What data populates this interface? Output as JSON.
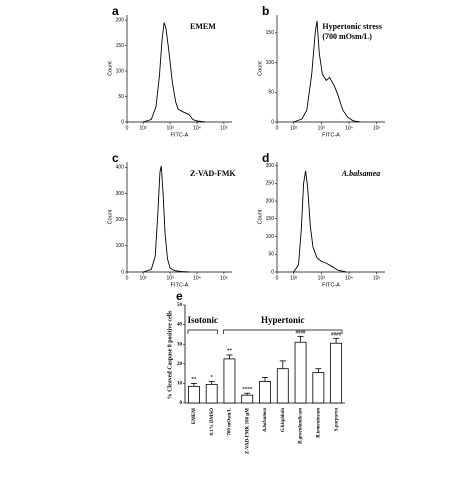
{
  "chart_data": [
    {
      "type": "line",
      "label": "a",
      "annotation": [
        "EMEM"
      ],
      "annotation_italic": false,
      "x_label": "FITC-A",
      "y_label": "Count",
      "xscale": "logicle",
      "xlim": [
        0,
        200000
      ],
      "xticks": [
        0,
        {
          "value": 100,
          "label": "10²"
        },
        {
          "value": 1000,
          "label": "10³"
        },
        {
          "value": 10000,
          "label": "10⁴"
        },
        {
          "value": 100000,
          "label": "10⁵"
        }
      ],
      "ylim": [
        0,
        210
      ],
      "yticks": [
        0,
        50,
        100,
        150,
        200
      ],
      "color": "#000000",
      "x": [
        100,
        200,
        300,
        400,
        500,
        600,
        700,
        900,
        1200,
        1600,
        2000,
        3000,
        5000,
        7000,
        10000,
        20000
      ],
      "values": [
        0,
        5,
        30,
        90,
        160,
        195,
        185,
        140,
        80,
        40,
        25,
        20,
        15,
        5,
        2,
        0
      ]
    },
    {
      "type": "line",
      "label": "b",
      "annotation": [
        "Hypertonic stress",
        "(700 mOsm/L)"
      ],
      "annotation_italic": false,
      "x_label": "FITC-A",
      "y_label": "Count",
      "xscale": "logicle",
      "xlim": [
        0,
        200000
      ],
      "xticks": [
        0,
        {
          "value": 100,
          "label": "10²"
        },
        {
          "value": 1000,
          "label": "10³"
        },
        {
          "value": 10000,
          "label": "10⁴"
        },
        {
          "value": 100000,
          "label": "10⁵"
        }
      ],
      "ylim": [
        0,
        180
      ],
      "yticks": [
        0,
        50,
        100,
        150
      ],
      "color": "#000000",
      "x": [
        100,
        200,
        300,
        450,
        600,
        700,
        850,
        1100,
        1500,
        2000,
        3000,
        4000,
        6000,
        9000,
        14000,
        25000
      ],
      "values": [
        0,
        5,
        20,
        80,
        150,
        170,
        115,
        80,
        70,
        75,
        60,
        45,
        20,
        8,
        2,
        0
      ]
    },
    {
      "type": "line",
      "label": "c",
      "annotation": [
        "Z-VAD-FMK"
      ],
      "annotation_italic": false,
      "x_label": "FITC-A",
      "y_label": "Count",
      "xscale": "logicle",
      "xlim": [
        0,
        200000
      ],
      "xticks": [
        0,
        {
          "value": 100,
          "label": "10²"
        },
        {
          "value": 1000,
          "label": "10³"
        },
        {
          "value": 10000,
          "label": "10⁴"
        },
        {
          "value": 100000,
          "label": "10⁵"
        }
      ],
      "ylim": [
        0,
        420
      ],
      "yticks": [
        0,
        100,
        200,
        300,
        400
      ],
      "color": "#000000",
      "x": [
        100,
        200,
        280,
        350,
        420,
        470,
        550,
        650,
        800,
        1000,
        1500,
        2500,
        5000
      ],
      "values": [
        0,
        10,
        60,
        220,
        380,
        405,
        300,
        150,
        50,
        15,
        5,
        2,
        0
      ]
    },
    {
      "type": "line",
      "label": "d",
      "annotation": [
        "A.balsamea"
      ],
      "annotation_italic": true,
      "x_label": "FITC-A",
      "y_label": "Count",
      "xscale": "logicle",
      "xlim": [
        0,
        200000
      ],
      "xticks": [
        0,
        {
          "value": 100,
          "label": "10²"
        },
        {
          "value": 1000,
          "label": "10³"
        },
        {
          "value": 10000,
          "label": "10⁴"
        },
        {
          "value": 100000,
          "label": "10⁵"
        }
      ],
      "ylim": [
        0,
        310
      ],
      "yticks": [
        0,
        50,
        100,
        150,
        200,
        250,
        300
      ],
      "color": "#000000",
      "x": [
        100,
        150,
        190,
        230,
        270,
        320,
        400,
        500,
        700,
        1000,
        1500,
        2500,
        4000,
        8000
      ],
      "values": [
        0,
        20,
        120,
        250,
        285,
        240,
        130,
        70,
        40,
        30,
        25,
        15,
        5,
        0
      ]
    },
    {
      "type": "bar",
      "label": "e",
      "y_label": "% Cleaved Caspase 8 positive cells",
      "groups": [
        "Isotonic",
        "Hypertonic"
      ],
      "categories": [
        "EMEM",
        "0.1% DMSO",
        "700 mOsm/L",
        "Z-VAD-FMK 100 µM",
        "A.balsamea",
        "G.hispidula",
        "R.groenlandicum",
        "R.tomentosum",
        "S.purpurea"
      ],
      "values": [
        8.5,
        9.5,
        22.5,
        4,
        11,
        17.5,
        31,
        15.5,
        30.5
      ],
      "errors": [
        1.5,
        1.5,
        2,
        1,
        2,
        4,
        3,
        2,
        2.5
      ],
      "significance": [
        "**",
        "*",
        "**",
        "****",
        null,
        null,
        "####",
        null,
        "####"
      ],
      "ylim": [
        0,
        50
      ],
      "yticks": [
        0,
        10,
        20,
        30,
        40,
        50
      ],
      "color": "#ffffff"
    }
  ]
}
